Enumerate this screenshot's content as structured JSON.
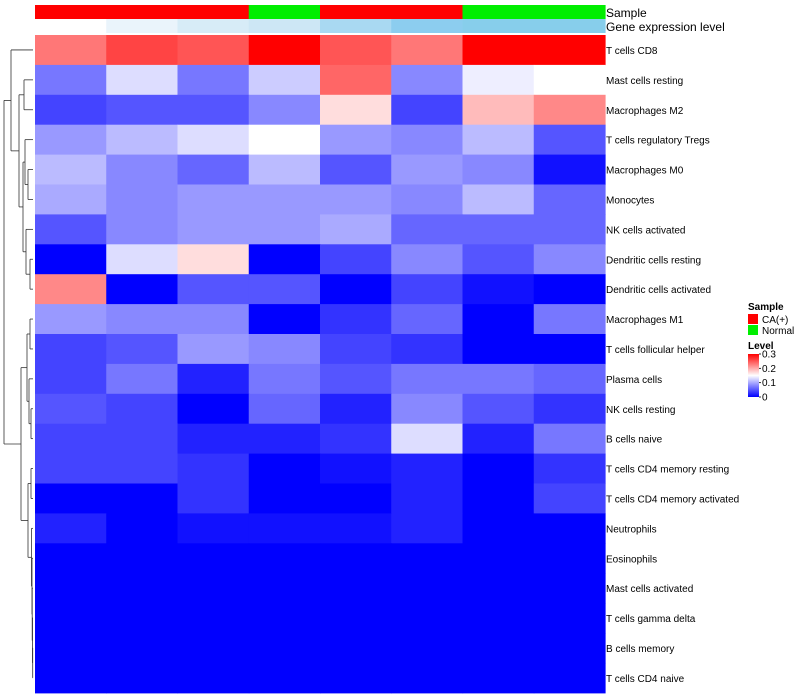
{
  "chart_data": {
    "type": "heatmap",
    "title": "",
    "annotation_tracks": {
      "sample_label": "Sample",
      "expression_label": "Gene expression level",
      "samples": [
        "CA(+)",
        "CA(+)",
        "CA(+)",
        "Normal",
        "CA(+)",
        "CA(+)",
        "Normal",
        "Normal"
      ],
      "sample_colors": {
        "CA(+)": "#ff0000",
        "Normal": "#00ee00"
      },
      "expression_colors": [
        "#ffffff",
        "#eaf4fb",
        "#d7ecf7",
        "#cde7f5",
        "#a9d9f2",
        "#8ccdef",
        "#87ceeb",
        "#87ceeb"
      ]
    },
    "columns": 8,
    "rows": [
      "T cells CD8",
      "Mast cells resting",
      "Macrophages M2",
      "T cells regulatory  Tregs",
      "Macrophages M0",
      "Monocytes",
      "NK cells activated",
      "Dendritic cells resting",
      "Dendritic cells activated",
      "Macrophages M1",
      "T cells follicular helper",
      "Plasma cells",
      "NK cells resting",
      "B cells naive",
      "T cells CD4 memory resting",
      "T cells CD4 memory activated",
      "Neutrophils",
      "Eosinophils",
      "Mast cells activated",
      "T cells gamma delta",
      "B cells memory",
      "T cells CD4 naive"
    ],
    "values": [
      [
        0.23,
        0.26,
        0.25,
        0.3,
        0.25,
        0.23,
        0.3,
        0.3
      ],
      [
        0.07,
        0.13,
        0.07,
        0.12,
        0.24,
        0.08,
        0.14,
        0.15
      ],
      [
        0.04,
        0.05,
        0.05,
        0.08,
        0.17,
        0.04,
        0.19,
        0.22
      ],
      [
        0.09,
        0.11,
        0.13,
        0.15,
        0.09,
        0.08,
        0.11,
        0.05
      ],
      [
        0.11,
        0.08,
        0.06,
        0.11,
        0.05,
        0.09,
        0.08,
        0.01
      ],
      [
        0.1,
        0.08,
        0.09,
        0.09,
        0.09,
        0.08,
        0.11,
        0.06
      ],
      [
        0.05,
        0.08,
        0.09,
        0.09,
        0.1,
        0.06,
        0.06,
        0.06
      ],
      [
        0.0,
        0.13,
        0.17,
        0.0,
        0.04,
        0.08,
        0.05,
        0.08
      ],
      [
        0.22,
        0.0,
        0.05,
        0.05,
        0.0,
        0.04,
        0.01,
        0.0
      ],
      [
        0.09,
        0.08,
        0.08,
        0.0,
        0.03,
        0.06,
        0.0,
        0.07
      ],
      [
        0.04,
        0.05,
        0.09,
        0.08,
        0.04,
        0.03,
        0.0,
        0.0
      ],
      [
        0.04,
        0.07,
        0.02,
        0.07,
        0.05,
        0.07,
        0.07,
        0.06
      ],
      [
        0.05,
        0.04,
        0.0,
        0.06,
        0.02,
        0.08,
        0.05,
        0.03
      ],
      [
        0.04,
        0.04,
        0.02,
        0.02,
        0.03,
        0.13,
        0.02,
        0.07
      ],
      [
        0.04,
        0.04,
        0.03,
        0.0,
        0.01,
        0.02,
        0.0,
        0.03
      ],
      [
        0.0,
        0.0,
        0.03,
        0.0,
        0.0,
        0.02,
        0.0,
        0.04
      ],
      [
        0.02,
        0.0,
        0.01,
        0.01,
        0.01,
        0.02,
        0.0,
        0.0
      ],
      [
        0.0,
        0.0,
        0.0,
        0.0,
        0.0,
        0.0,
        0.0,
        0.0
      ],
      [
        0.0,
        0.0,
        0.0,
        0.0,
        0.0,
        0.0,
        0.0,
        0.0
      ],
      [
        0.0,
        0.0,
        0.0,
        0.0,
        0.0,
        0.0,
        0.0,
        0.0
      ],
      [
        0.0,
        0.0,
        0.0,
        0.0,
        0.0,
        0.0,
        0.0,
        0.0
      ],
      [
        0.0,
        0.0,
        0.0,
        0.0,
        0.0,
        0.0,
        0.0,
        0.0
      ]
    ],
    "color_scale": {
      "low": "#0000ff",
      "mid": "#ffffff",
      "high": "#ff0000",
      "min": 0,
      "mid_value": 0.15,
      "max": 0.3
    },
    "legend": {
      "sample_title": "Sample",
      "sample_entries": [
        {
          "label": "CA(+)",
          "color": "#ff0000"
        },
        {
          "label": "Normal",
          "color": "#00ee00"
        }
      ],
      "level_title": "Level",
      "level_ticks": [
        "0.3",
        "0.2",
        "0.1",
        "0"
      ],
      "level_tick_values": [
        0.3,
        0.2,
        0.1,
        0
      ],
      "placement": "right"
    },
    "dendrogram": "rows"
  }
}
